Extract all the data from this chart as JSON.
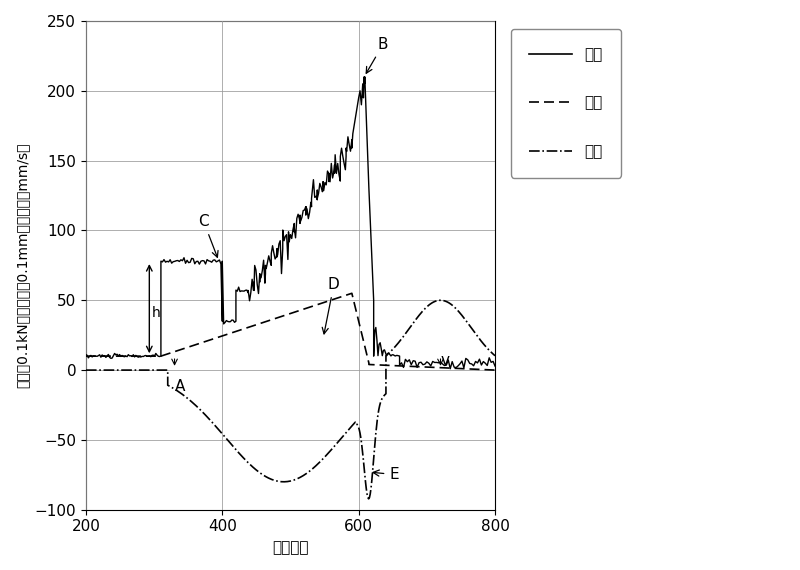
{
  "title": "",
  "xlabel": "时间节点",
  "ylabel": "载荷（0.1kN）、行程（0.1mm）、速度（mm/s）",
  "xlim": [
    200,
    800
  ],
  "ylim": [
    -100,
    250
  ],
  "xticks": [
    200,
    400,
    600,
    800
  ],
  "yticks": [
    -100,
    -50,
    0,
    50,
    100,
    150,
    200,
    250
  ],
  "background_color": "#ffffff",
  "grid_color": "#999999",
  "legend_labels": [
    "载荷",
    "行程",
    "速度"
  ],
  "font_size": 11,
  "tick_font_size": 11
}
